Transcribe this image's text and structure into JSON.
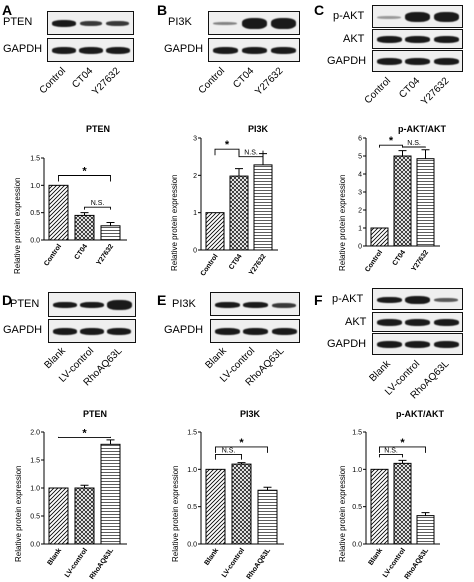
{
  "panels": [
    {
      "id": "A",
      "letter": "A",
      "blots": [
        "PTEN",
        "GAPDH"
      ],
      "lanes": [
        "Control",
        "CT04",
        "Y27632"
      ]
    },
    {
      "id": "B",
      "letter": "B",
      "blots": [
        "PI3K",
        "GAPDH"
      ],
      "lanes": [
        "Control",
        "CT04",
        "Y27632"
      ]
    },
    {
      "id": "C",
      "letter": "C",
      "blots": [
        "p-AKT",
        "AKT",
        "GAPDH"
      ],
      "lanes": [
        "Control",
        "CT04",
        "Y27632"
      ]
    },
    {
      "id": "D",
      "letter": "D",
      "blots": [
        "PTEN",
        "GAPDH"
      ],
      "lanes": [
        "Blank",
        "LV-control",
        "RhoAQ63L"
      ]
    },
    {
      "id": "E",
      "letter": "E",
      "blots": [
        "PI3K",
        "GAPDH"
      ],
      "lanes": [
        "Blank",
        "LV-control",
        "RhoAQ63L"
      ]
    },
    {
      "id": "F",
      "letter": "F",
      "blots": [
        "p-AKT",
        "AKT",
        "GAPDH"
      ],
      "lanes": [
        "Blank",
        "LV-control",
        "RhoAQ63L"
      ]
    }
  ],
  "sig": {
    "star": "*",
    "ns": "N.S."
  },
  "chart_data": [
    {
      "type": "bar",
      "title": "PTEN",
      "ylabel": "Relative protein expression",
      "categories": [
        "Control",
        "CT04",
        "Y27632"
      ],
      "values": [
        1.0,
        0.45,
        0.26
      ],
      "errors": [
        0.0,
        0.05,
        0.06
      ],
      "ylim": [
        0,
        1.5
      ],
      "yticks": [
        0.0,
        0.5,
        1.0,
        1.5
      ],
      "tick_labels": [
        "0.0",
        "0.5",
        "1.0",
        "1.5"
      ],
      "patterns": [
        "diag",
        "cross",
        "hlines"
      ]
    },
    {
      "type": "bar",
      "title": "PI3K",
      "ylabel": "Relative protein expression",
      "categories": [
        "Control",
        "CT04",
        "Y27632"
      ],
      "values": [
        1.0,
        1.98,
        2.28
      ],
      "errors": [
        0.0,
        0.2,
        0.3
      ],
      "ylim": [
        0,
        3
      ],
      "yticks": [
        0,
        1,
        2,
        3
      ],
      "tick_labels": [
        "0",
        "1",
        "2",
        "3"
      ],
      "patterns": [
        "diag",
        "cross",
        "hlines"
      ]
    },
    {
      "type": "bar",
      "title": "p-AKT/AKT",
      "ylabel": "Relative protein expression",
      "categories": [
        "Control",
        "CT04",
        "Y27632"
      ],
      "values": [
        1.0,
        5.0,
        4.85
      ],
      "errors": [
        0.0,
        0.3,
        0.5
      ],
      "ylim": [
        0,
        6
      ],
      "yticks": [
        0,
        1,
        2,
        3,
        4,
        5,
        6
      ],
      "tick_labels": [
        "0",
        "1",
        "2",
        "3",
        "4",
        "5",
        "6"
      ],
      "patterns": [
        "diag",
        "cross",
        "hlines"
      ]
    },
    {
      "type": "bar",
      "title": "PTEN",
      "ylabel": "Relative protein expression",
      "categories": [
        "Blank",
        "LV-control",
        "RhoAQ63L"
      ],
      "values": [
        1.0,
        1.0,
        1.78
      ],
      "errors": [
        0.0,
        0.05,
        0.08
      ],
      "ylim": [
        0,
        2.0
      ],
      "yticks": [
        0.0,
        0.5,
        1.0,
        1.5,
        2.0
      ],
      "tick_labels": [
        "0.0",
        "0.5",
        "1.0",
        "1.5",
        "2.0"
      ],
      "patterns": [
        "diag",
        "cross",
        "hlines"
      ]
    },
    {
      "type": "bar",
      "title": "PI3K",
      "ylabel": "Relative protein expression",
      "categories": [
        "Blank",
        "LV-control",
        "RhoAQ63L"
      ],
      "values": [
        1.0,
        1.07,
        0.72
      ],
      "errors": [
        0.0,
        0.02,
        0.04
      ],
      "ylim": [
        0,
        1.5
      ],
      "yticks": [
        0.0,
        0.5,
        1.0,
        1.5
      ],
      "tick_labels": [
        "0.0",
        "0.5",
        "1.0",
        "1.5"
      ],
      "patterns": [
        "diag",
        "cross",
        "hlines"
      ]
    },
    {
      "type": "bar",
      "title": "p-AKT/AKT",
      "ylabel": "Relative protein expression",
      "categories": [
        "Blank",
        "LV-control",
        "RhoAQ63L"
      ],
      "values": [
        1.0,
        1.08,
        0.38
      ],
      "errors": [
        0.0,
        0.04,
        0.04
      ],
      "ylim": [
        0,
        1.5
      ],
      "yticks": [
        0.0,
        0.5,
        1.0,
        1.5
      ],
      "tick_labels": [
        "0.0",
        "0.5",
        "1.0",
        "1.5"
      ],
      "patterns": [
        "diag",
        "cross",
        "hlines"
      ]
    }
  ]
}
